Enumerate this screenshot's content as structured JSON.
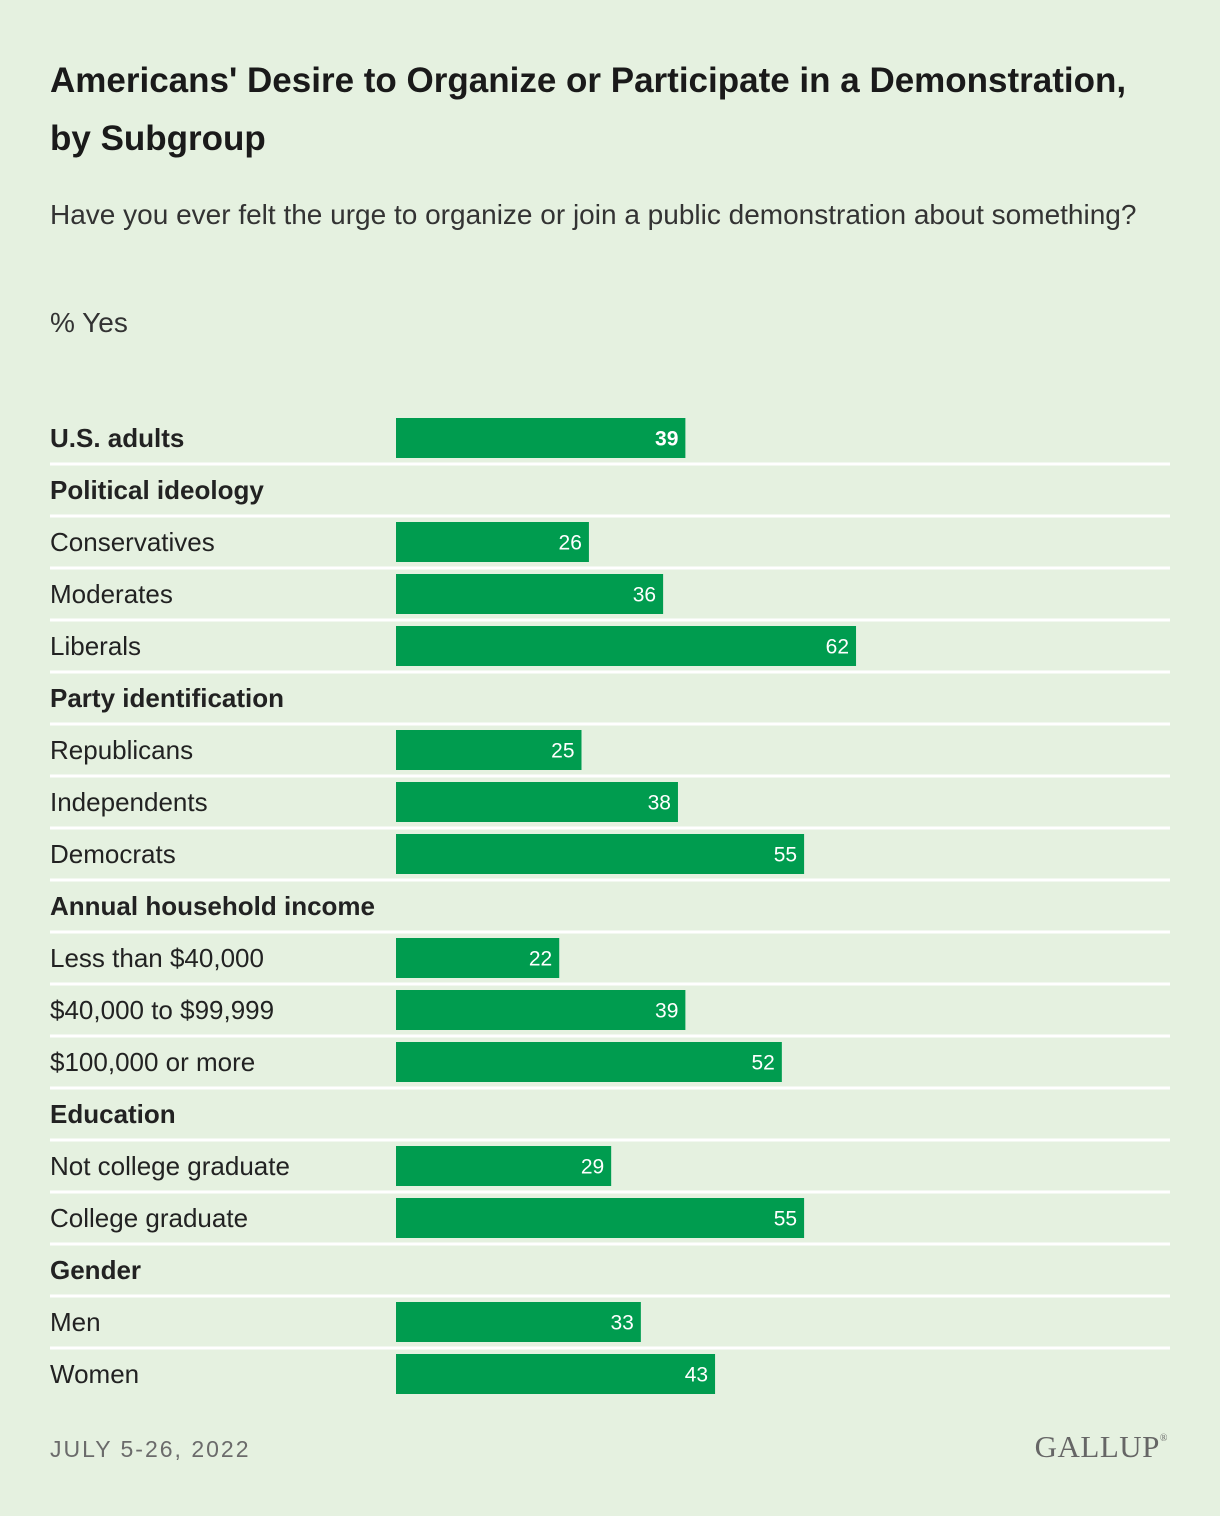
{
  "header": {
    "title": "Americans' Desire to Organize or Participate in a Demonstration, by Subgroup",
    "subtitle": "Have you ever felt the urge to organize or join a public demonstration about something?",
    "unit": "% Yes"
  },
  "footer": {
    "date": "JULY 5-26, 2022",
    "brand": "GALLUP",
    "brand_mark": "®"
  },
  "colors": {
    "bar": "#009c4f",
    "background": "#e5f1e0",
    "divider": "#ffffff",
    "value_label": "#ffffff"
  },
  "chart_data": {
    "type": "bar",
    "orientation": "horizontal",
    "xlim": [
      0,
      100
    ],
    "grid": false,
    "legend": "none",
    "rows": [
      {
        "label": "U.S. adults",
        "value": 39,
        "bold": true
      },
      {
        "label": "Political ideology",
        "header": true
      },
      {
        "label": "Conservatives",
        "value": 26
      },
      {
        "label": "Moderates",
        "value": 36
      },
      {
        "label": "Liberals",
        "value": 62
      },
      {
        "label": "Party identification",
        "header": true
      },
      {
        "label": "Republicans",
        "value": 25
      },
      {
        "label": "Independents",
        "value": 38
      },
      {
        "label": "Democrats",
        "value": 55
      },
      {
        "label": "Annual household income",
        "header": true
      },
      {
        "label": "Less than $40,000",
        "value": 22
      },
      {
        "label": "$40,000 to $99,999",
        "value": 39
      },
      {
        "label": "$100,000 or more",
        "value": 52
      },
      {
        "label": "Education",
        "header": true
      },
      {
        "label": "Not college graduate",
        "value": 29
      },
      {
        "label": "College graduate",
        "value": 55
      },
      {
        "label": "Gender",
        "header": true
      },
      {
        "label": "Men",
        "value": 33
      },
      {
        "label": "Women",
        "value": 43
      }
    ]
  }
}
